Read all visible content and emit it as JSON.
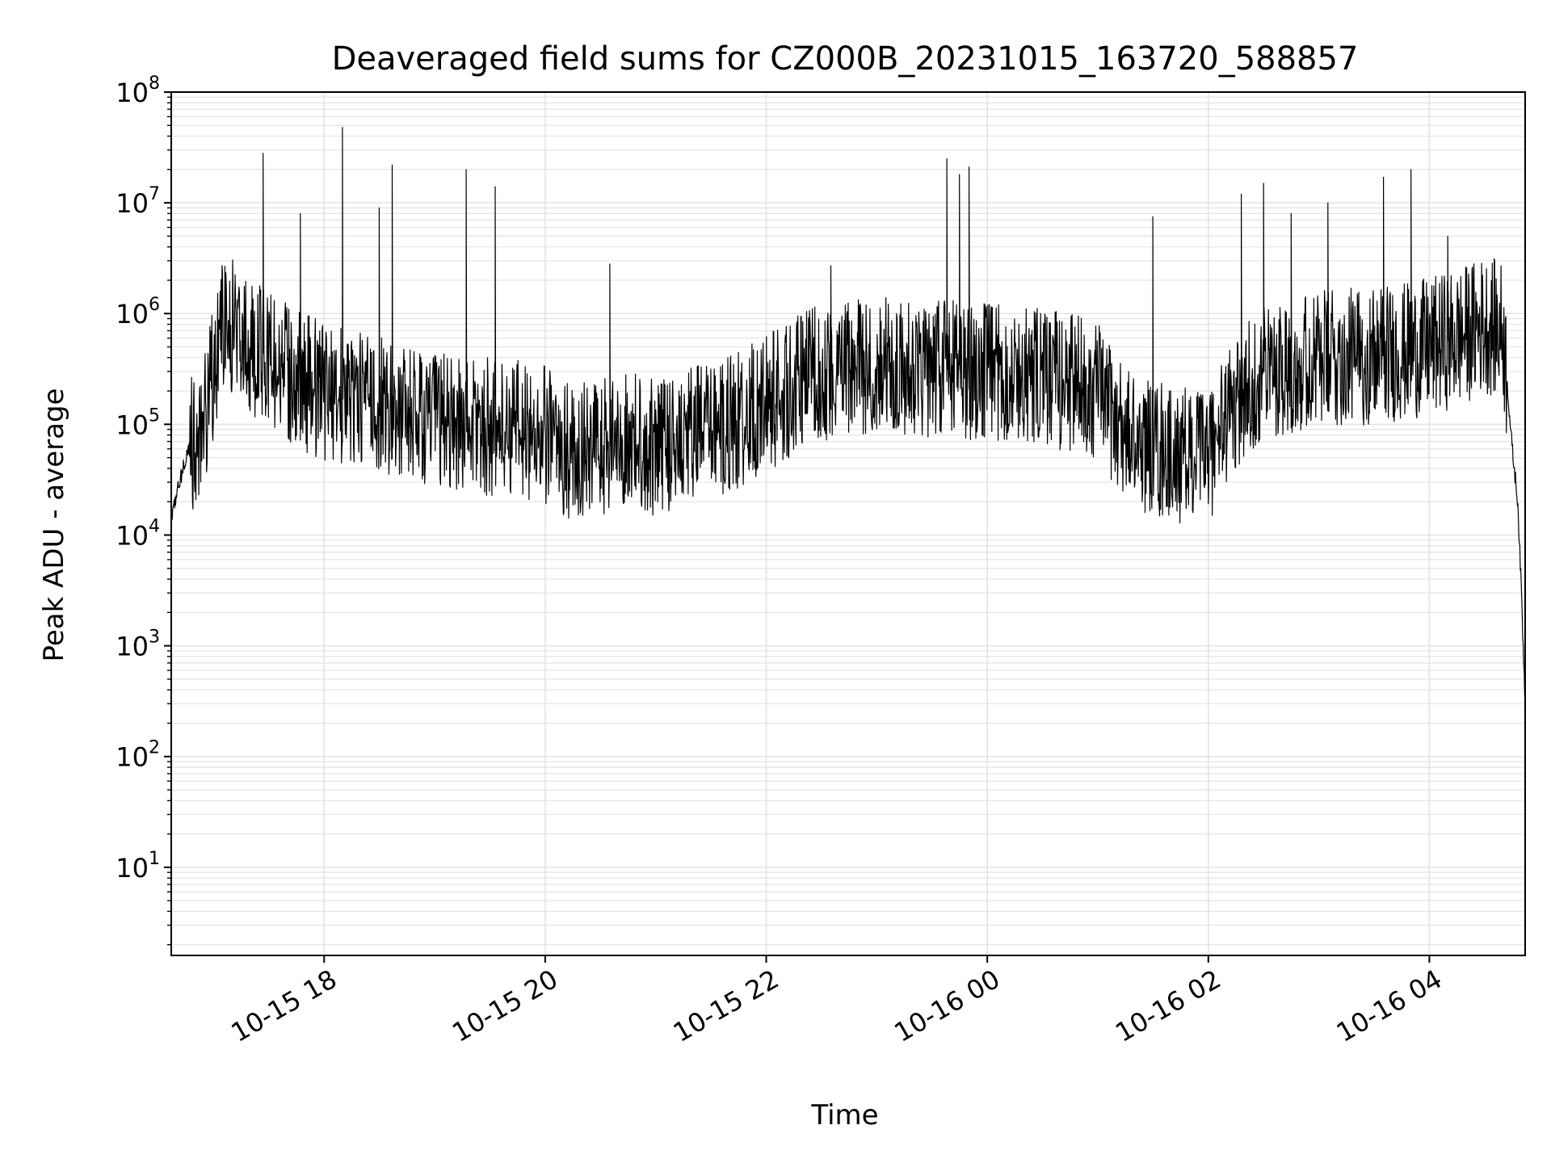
{
  "chart_data": {
    "type": "line",
    "title": "Deaveraged field sums for CZ000B_20231015_163720_588857",
    "xlabel": "Time",
    "ylabel": "Peak ADU - average",
    "yscale": "log",
    "ylim": [
      1.6,
      100000000
    ],
    "xlim": [
      "2023-10-15 16:37",
      "2023-10-16 04:52"
    ],
    "grid": true,
    "color": "#000000",
    "grid_color": "#e3e3e3",
    "x_ticks": [
      {
        "label": "10-15 18",
        "time": "2023-10-15 18:00"
      },
      {
        "label": "10-15 20",
        "time": "2023-10-15 20:00"
      },
      {
        "label": "10-15 22",
        "time": "2023-10-15 22:00"
      },
      {
        "label": "10-16 00",
        "time": "2023-10-16 00:00"
      },
      {
        "label": "10-16 02",
        "time": "2023-10-16 02:00"
      },
      {
        "label": "10-16 04",
        "time": "2023-10-16 04:00"
      }
    ],
    "y_ticks": [
      {
        "base": "10",
        "exp": "1",
        "value": 10
      },
      {
        "base": "10",
        "exp": "2",
        "value": 100
      },
      {
        "base": "10",
        "exp": "3",
        "value": 1000
      },
      {
        "base": "10",
        "exp": "4",
        "value": 10000
      },
      {
        "base": "10",
        "exp": "5",
        "value": 100000
      },
      {
        "base": "10",
        "exp": "6",
        "value": 1000000
      },
      {
        "base": "10",
        "exp": "7",
        "value": 10000000
      },
      {
        "base": "10",
        "exp": "8",
        "value": 100000000
      }
    ],
    "series": [
      {
        "x": [
          "2023-10-15 16:37",
          "2023-10-15 16:45",
          "2023-10-15 16:55",
          "2023-10-15 17:05",
          "2023-10-15 17:15",
          "2023-10-15 17:30",
          "2023-10-15 17:45",
          "2023-10-15 18:00",
          "2023-10-15 18:15",
          "2023-10-15 18:30",
          "2023-10-15 18:45",
          "2023-10-15 19:00",
          "2023-10-15 19:15",
          "2023-10-15 19:30",
          "2023-10-15 19:45",
          "2023-10-15 20:00",
          "2023-10-15 20:15",
          "2023-10-15 20:30",
          "2023-10-15 20:45",
          "2023-10-15 21:00",
          "2023-10-15 21:15",
          "2023-10-15 21:30",
          "2023-10-15 21:45",
          "2023-10-15 22:00",
          "2023-10-15 22:15",
          "2023-10-15 22:30",
          "2023-10-15 22:45",
          "2023-10-15 23:00",
          "2023-10-15 23:15",
          "2023-10-15 23:30",
          "2023-10-15 23:45",
          "2023-10-16 00:00",
          "2023-10-16 00:15",
          "2023-10-16 00:30",
          "2023-10-16 00:45",
          "2023-10-16 01:00",
          "2023-10-16 01:15",
          "2023-10-16 01:30",
          "2023-10-16 01:45",
          "2023-10-16 02:00",
          "2023-10-16 02:15",
          "2023-10-16 02:30",
          "2023-10-16 02:45",
          "2023-10-16 03:00",
          "2023-10-16 03:15",
          "2023-10-16 03:30",
          "2023-10-16 03:45",
          "2023-10-16 04:00",
          "2023-10-16 04:15",
          "2023-10-16 04:30",
          "2023-10-16 04:40",
          "2023-10-16 04:45",
          "2023-10-16 04:48",
          "2023-10-16 04:50",
          "2023-10-16 04:52"
        ],
        "y": [
          15000,
          50000,
          120000,
          900000,
          600000,
          400000,
          250000,
          200000,
          180000,
          150000,
          120000,
          110000,
          100000,
          95000,
          90000,
          80000,
          55000,
          60000,
          75000,
          60000,
          80000,
          90000,
          110000,
          150000,
          220000,
          300000,
          320000,
          340000,
          330000,
          320000,
          310000,
          300000,
          280000,
          260000,
          240000,
          200000,
          80000,
          60000,
          50000,
          55000,
          150000,
          300000,
          350000,
          380000,
          400000,
          420000,
          450000,
          500000,
          600000,
          800000,
          700000,
          60000,
          20000,
          3000,
          300
        ]
      }
    ],
    "spikes": [
      {
        "time": "2023-10-15 17:27",
        "peak": 28000000
      },
      {
        "time": "2023-10-15 17:47",
        "peak": 8000000
      },
      {
        "time": "2023-10-15 18:10",
        "peak": 48000000
      },
      {
        "time": "2023-10-15 18:30",
        "peak": 9000000
      },
      {
        "time": "2023-10-15 18:37",
        "peak": 22000000
      },
      {
        "time": "2023-10-15 19:17",
        "peak": 20000000
      },
      {
        "time": "2023-10-15 19:33",
        "peak": 14000000
      },
      {
        "time": "2023-10-15 20:35",
        "peak": 2800000
      },
      {
        "time": "2023-10-15 22:35",
        "peak": 2700000
      },
      {
        "time": "2023-10-15 23:38",
        "peak": 25000000
      },
      {
        "time": "2023-10-15 23:45",
        "peak": 18000000
      },
      {
        "time": "2023-10-15 23:50",
        "peak": 21000000
      },
      {
        "time": "2023-10-16 01:30",
        "peak": 7500000
      },
      {
        "time": "2023-10-16 02:18",
        "peak": 12000000
      },
      {
        "time": "2023-10-16 02:30",
        "peak": 15000000
      },
      {
        "time": "2023-10-16 02:45",
        "peak": 8000000
      },
      {
        "time": "2023-10-16 03:05",
        "peak": 10000000
      },
      {
        "time": "2023-10-16 03:35",
        "peak": 17000000
      },
      {
        "time": "2023-10-16 03:50",
        "peak": 20000000
      },
      {
        "time": "2023-10-16 04:10",
        "peak": 5000000
      }
    ]
  }
}
